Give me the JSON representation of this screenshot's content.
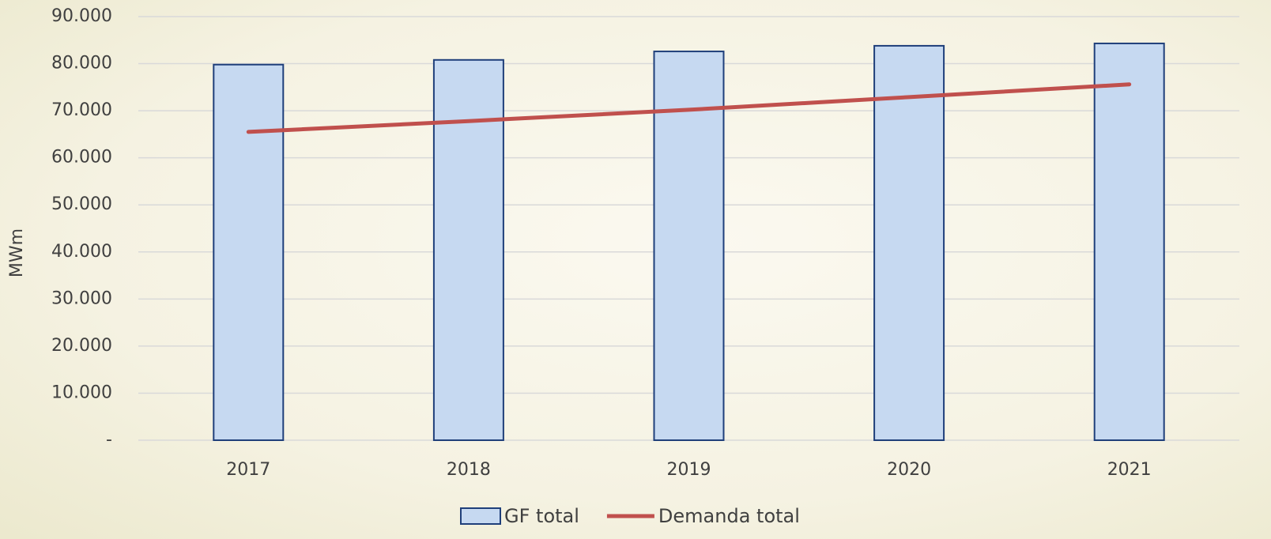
{
  "chart_data": {
    "type": "bar_line",
    "ylabel": "MWm",
    "categories": [
      "2017",
      "2018",
      "2019",
      "2020",
      "2021"
    ],
    "series": [
      {
        "name": "GF total",
        "type": "bar",
        "color": "#c6d9f1",
        "edgecolor": "#1f3f7a",
        "values": [
          79800,
          80800,
          82600,
          83800,
          84300
        ]
      },
      {
        "name": "Demanda total",
        "type": "line",
        "color": "#c0504d",
        "values": [
          65500,
          67800,
          70200,
          72900,
          75600
        ]
      }
    ],
    "ylim": [
      0,
      90000
    ],
    "yticks": [
      {
        "value": 0,
        "label": "-"
      },
      {
        "value": 10000,
        "label": "10.000"
      },
      {
        "value": 20000,
        "label": "20.000"
      },
      {
        "value": 30000,
        "label": "30.000"
      },
      {
        "value": 40000,
        "label": "40.000"
      },
      {
        "value": 50000,
        "label": "50.000"
      },
      {
        "value": 60000,
        "label": "60.000"
      },
      {
        "value": 70000,
        "label": "70.000"
      },
      {
        "value": 80000,
        "label": "80.000"
      },
      {
        "value": 90000,
        "label": "90.000"
      }
    ],
    "grid": true,
    "legend": "bottom"
  }
}
